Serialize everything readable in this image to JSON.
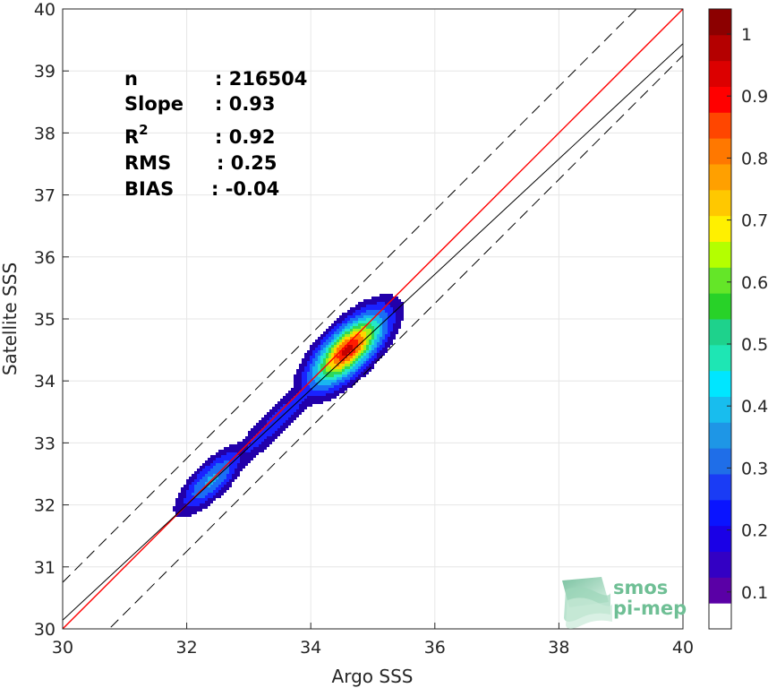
{
  "chart_data": {
    "type": "density-scatter",
    "xlabel": "Argo SSS",
    "ylabel": "Satellite SSS",
    "xlim": [
      30,
      40
    ],
    "ylim": [
      30,
      40
    ],
    "x_ticks": [
      "30",
      "32",
      "34",
      "36",
      "38",
      "40"
    ],
    "y_ticks": [
      "30",
      "31",
      "32",
      "33",
      "34",
      "35",
      "36",
      "37",
      "38",
      "39",
      "40"
    ],
    "grid": true,
    "stats": [
      {
        "label": "n",
        "value": ": 216504"
      },
      {
        "label": "Slope",
        "value": ": 0.93"
      },
      {
        "label": "R",
        "sup": "2",
        "value": ": 0.92"
      },
      {
        "label": "RMS",
        "value": ": 0.25"
      },
      {
        "label": "BIAS",
        "value": ": -0.04"
      }
    ],
    "lines": [
      {
        "kind": "identity",
        "slope": 1,
        "intercept": 0,
        "color": "#ff0000",
        "style": "solid"
      },
      {
        "kind": "regression",
        "slope": 0.93,
        "intercept": 2.24,
        "color": "#000000",
        "style": "solid"
      },
      {
        "kind": "upper-bound",
        "slope": 1,
        "intercept": 0.75,
        "color": "#000000",
        "style": "dashed"
      },
      {
        "kind": "lower-bound",
        "slope": 1,
        "intercept": -0.75,
        "color": "#000000",
        "style": "dashed"
      }
    ],
    "density_levels": [
      {
        "level": 0.05,
        "color": "#2200aa"
      },
      {
        "level": 0.12,
        "color": "#1a22ff"
      },
      {
        "level": 0.2,
        "color": "#1a6ef5"
      },
      {
        "level": 0.3,
        "color": "#19b5f0"
      },
      {
        "level": 0.4,
        "color": "#25e8c7"
      },
      {
        "level": 0.5,
        "color": "#2ed858"
      },
      {
        "level": 0.6,
        "color": "#9ef21a"
      },
      {
        "level": 0.7,
        "color": "#ffd400"
      },
      {
        "level": 0.8,
        "color": "#ff7c00"
      },
      {
        "level": 0.9,
        "color": "#ff1c00"
      },
      {
        "level": 0.97,
        "color": "#c40000"
      }
    ],
    "density_peaks": [
      {
        "x": 34.6,
        "y": 34.5,
        "weight": 1.0
      },
      {
        "x": 32.4,
        "y": 32.4,
        "weight": 0.32
      }
    ],
    "colorbar": {
      "min": 0,
      "max": 1,
      "ticks": [
        "0.1",
        "0.2",
        "0.3",
        "0.4",
        "0.5",
        "0.6",
        "0.7",
        "0.8",
        "0.9",
        "1"
      ],
      "colors": [
        "#ffffff",
        "#5a00a6",
        "#3300c4",
        "#1a00e6",
        "#0a14ff",
        "#1a3cf5",
        "#1f6ee8",
        "#1e96e6",
        "#18bdee",
        "#00e6ff",
        "#1ee6b4",
        "#1ed28c",
        "#28d228",
        "#64e628",
        "#b4ff00",
        "#fff000",
        "#ffc800",
        "#ffa000",
        "#ff7800",
        "#ff4600",
        "#ff0000",
        "#dc0000",
        "#b40000",
        "#8c0000"
      ]
    }
  },
  "logo": {
    "line1": "smos",
    "line2": "pi-mep",
    "icon": "stacked-waves-icon"
  }
}
